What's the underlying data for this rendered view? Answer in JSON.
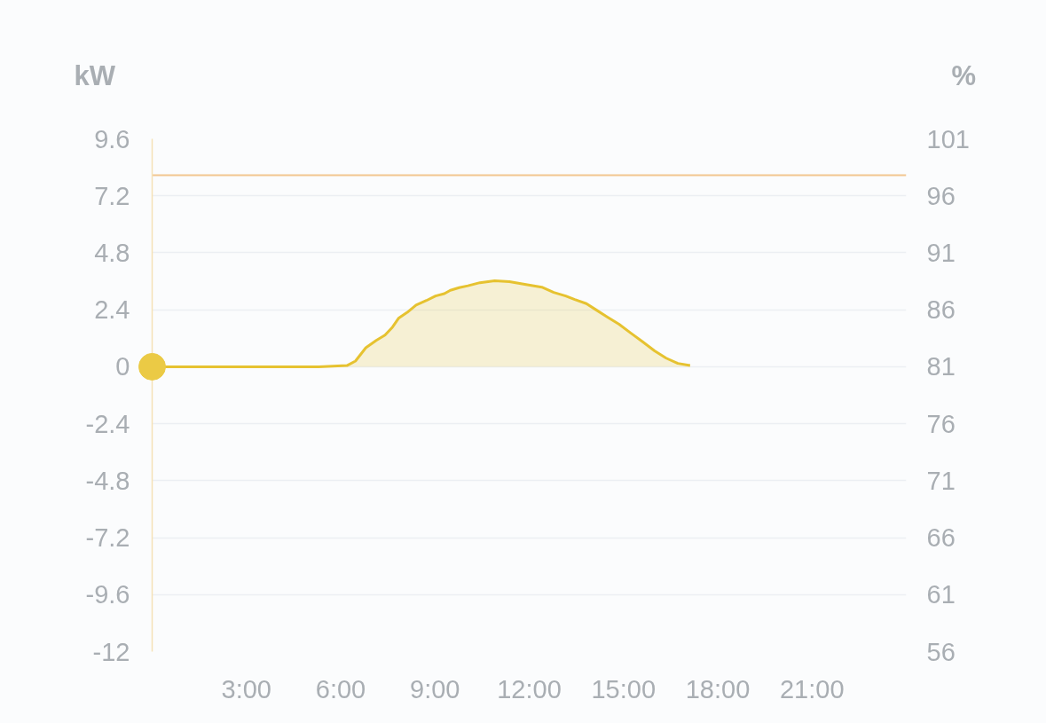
{
  "chart_data": {
    "type": "area",
    "ylabel": "kW",
    "y2label": "%",
    "xlim": [
      0,
      24
    ],
    "xticks": [
      {
        "value": 3,
        "label": "3:00"
      },
      {
        "value": 6,
        "label": "6:00"
      },
      {
        "value": 9,
        "label": "9:00"
      },
      {
        "value": 12,
        "label": "12:00"
      },
      {
        "value": 15,
        "label": "15:00"
      },
      {
        "value": 18,
        "label": "18:00"
      },
      {
        "value": 21,
        "label": "21:00"
      }
    ],
    "ylim": [
      -12,
      9.6
    ],
    "yticks": [
      -12,
      -9.6,
      -7.2,
      -4.8,
      -2.4,
      0,
      2.4,
      4.8,
      7.2,
      9.6
    ],
    "y2lim": [
      56,
      101
    ],
    "y2ticks": [
      56,
      61,
      66,
      71,
      76,
      81,
      86,
      91,
      96,
      101
    ],
    "grid": "y",
    "series": [
      {
        "color": "#e6c230",
        "x": [
          0,
          5.3,
          6.2,
          6.47,
          6.8,
          7.13,
          7.41,
          7.65,
          7.84,
          8.12,
          8.4,
          8.73,
          9.02,
          9.3,
          9.49,
          9.77,
          10.05,
          10.43,
          10.9,
          11.37,
          11.94,
          12.4,
          12.78,
          13.16,
          13.45,
          13.82,
          14.1,
          14.48,
          14.86,
          15.23,
          15.61,
          15.99,
          16.36,
          16.73,
          17.12
        ],
        "values": [
          0,
          0,
          0.05,
          0.24,
          0.8,
          1.11,
          1.33,
          1.67,
          2.04,
          2.29,
          2.6,
          2.79,
          2.98,
          3.08,
          3.22,
          3.33,
          3.41,
          3.54,
          3.62,
          3.58,
          3.45,
          3.35,
          3.13,
          2.98,
          2.83,
          2.66,
          2.42,
          2.1,
          1.79,
          1.42,
          1.05,
          0.67,
          0.36,
          0.14,
          0.05
        ]
      },
      {
        "type": "line",
        "axis": "y2",
        "color": "#f2c690",
        "x": [
          0,
          24
        ],
        "values": [
          97.8,
          97.8
        ]
      },
      {
        "type": "scatter",
        "marker": "circle",
        "color": "#ebca45",
        "x": [
          0
        ],
        "values": [
          0
        ]
      }
    ]
  }
}
